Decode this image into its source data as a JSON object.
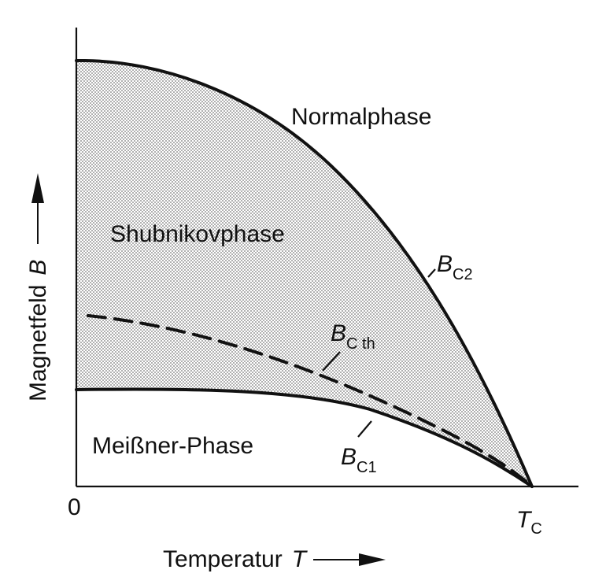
{
  "colors": {
    "ink": "#111111",
    "shade_dots": "#777777",
    "background": "#ffffff"
  },
  "axes": {
    "x_label": "Temperatur",
    "x_symbol": "T",
    "y_label": "Magnetfeld",
    "y_symbol": "B",
    "origin_label": "0",
    "tc_label": "T",
    "tc_subscript": "C"
  },
  "regions": {
    "normal": "Normalphase",
    "shubnikov": "Shubnikovphase",
    "meissner": "Meißner-Phase"
  },
  "curves": {
    "bc2": {
      "symbol": "B",
      "subscript": "C2"
    },
    "bcth": {
      "symbol": "B",
      "subscript": "C th"
    },
    "bc1": {
      "symbol": "B",
      "subscript": "C1"
    }
  }
}
